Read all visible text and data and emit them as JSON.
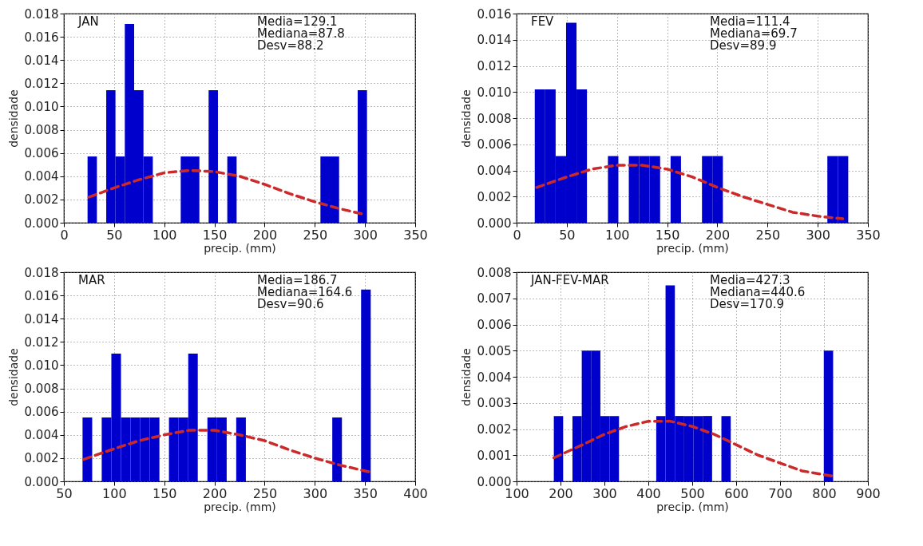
{
  "chart_data": [
    {
      "type": "histogram",
      "xlabel": "precip. (mm)",
      "ylabel": "densidade",
      "annotations": [
        "JAN",
        "Media=129.1",
        "Mediana=87.8",
        "Desv=88.2"
      ],
      "color": "#0000cc",
      "bins": [
        23.6,
        32.9,
        42.2,
        51.4,
        60.7,
        70.0,
        79.3,
        88.6,
        97.8,
        107.1,
        116.4,
        125.7,
        135.0,
        144.2,
        153.5,
        162.8,
        172.1,
        181.4,
        190.6,
        199.9,
        209.2,
        218.5,
        227.8,
        237.0,
        246.3,
        255.6,
        264.9,
        274.2,
        283.4,
        292.7,
        302.0
      ],
      "values": [
        0.0057,
        0,
        0.0114,
        0.0057,
        0.0171,
        0.0114,
        0.0057,
        0,
        0,
        0,
        0.0057,
        0.0057,
        0,
        0.0114,
        0,
        0.0057,
        0,
        0,
        0,
        0,
        0,
        0,
        0,
        0,
        0,
        0.0057,
        0.0057,
        0,
        0,
        0.0114
      ],
      "series": [
        {
          "type": "line",
          "color": "#cc2a2a",
          "line_style": "dashed",
          "x": [
            25,
            50,
            75,
            100,
            125,
            150,
            175,
            200,
            225,
            250,
            275,
            300
          ],
          "values": [
            0.0022,
            0.003,
            0.0037,
            0.0043,
            0.0045,
            0.0044,
            0.004,
            0.0033,
            0.0025,
            0.0018,
            0.0012,
            0.0007
          ]
        }
      ],
      "xlim": [
        0,
        350
      ],
      "xticks": [
        0,
        50,
        100,
        150,
        200,
        250,
        300,
        350
      ],
      "ylim": [
        0,
        0.018
      ],
      "yticks": [
        {
          "value": 0,
          "label": "0.000"
        },
        {
          "value": 0.002,
          "label": "0.002"
        },
        {
          "value": 0.004,
          "label": "0.004"
        },
        {
          "value": 0.006,
          "label": "0.006"
        },
        {
          "value": 0.008,
          "label": "0.008"
        },
        {
          "value": 0.01,
          "label": "0.010"
        },
        {
          "value": 0.012,
          "label": "0.012"
        },
        {
          "value": 0.014,
          "label": "0.014"
        },
        {
          "value": 0.016,
          "label": "0.016"
        },
        {
          "value": 0.018,
          "label": "0.018"
        }
      ],
      "grid": true
    },
    {
      "type": "histogram",
      "xlabel": "precip. (mm)",
      "ylabel": "densidade",
      "annotations": [
        "FEV",
        "Media=111.4",
        "Mediana=69.7",
        "Desv=89.9"
      ],
      "color": "#0000cc",
      "bins": [
        18.1,
        28.5,
        38.9,
        49.3,
        59.7,
        70.1,
        80.6,
        91.0,
        101.4,
        111.8,
        122.2,
        132.6,
        143.0,
        153.4,
        163.8,
        174.2,
        184.7,
        195.1,
        205.5,
        215.9,
        226.3,
        236.7,
        247.1,
        257.5,
        267.9,
        278.4,
        288.8,
        299.2,
        309.6,
        320.0,
        330.4
      ],
      "values": [
        0.0102,
        0.0102,
        0.0051,
        0.0153,
        0.0102,
        0,
        0,
        0.0051,
        0,
        0.0051,
        0.0051,
        0.0051,
        0,
        0.0051,
        0,
        0,
        0.0051,
        0.0051,
        0,
        0,
        0,
        0,
        0,
        0,
        0,
        0,
        0,
        0,
        0.0051,
        0.0051
      ],
      "series": [
        {
          "type": "line",
          "color": "#cc2a2a",
          "line_style": "dashed",
          "x": [
            20,
            50,
            75,
            100,
            125,
            150,
            175,
            200,
            225,
            250,
            275,
            300,
            325
          ],
          "values": [
            0.0027,
            0.0035,
            0.0041,
            0.0044,
            0.0044,
            0.0041,
            0.0035,
            0.0027,
            0.002,
            0.0014,
            0.0008,
            0.0005,
            0.0003
          ]
        }
      ],
      "xlim": [
        0,
        350
      ],
      "xticks": [
        0,
        50,
        100,
        150,
        200,
        250,
        300,
        350
      ],
      "ylim": [
        0,
        0.016
      ],
      "yticks": [
        {
          "value": 0,
          "label": "0.000"
        },
        {
          "value": 0.002,
          "label": "0.002"
        },
        {
          "value": 0.004,
          "label": "0.004"
        },
        {
          "value": 0.006,
          "label": "0.006"
        },
        {
          "value": 0.008,
          "label": "0.008"
        },
        {
          "value": 0.01,
          "label": "0.010"
        },
        {
          "value": 0.012,
          "label": "0.012"
        },
        {
          "value": 0.014,
          "label": "0.014"
        },
        {
          "value": 0.016,
          "label": "0.016"
        }
      ],
      "grid": true
    },
    {
      "type": "histogram",
      "xlabel": "precip. (mm)",
      "ylabel": "densidade",
      "annotations": [
        "MAR",
        "Media=186.7",
        "Mediana=164.6",
        "Desv=90.6"
      ],
      "color": "#0000cc",
      "bins": [
        68.6,
        78.2,
        87.7,
        97.3,
        106.9,
        116.5,
        126.0,
        135.6,
        145.2,
        154.7,
        164.3,
        173.9,
        183.4,
        193.0,
        202.6,
        212.2,
        221.7,
        231.3,
        240.9,
        250.4,
        260.0,
        269.6,
        279.1,
        288.7,
        298.3,
        307.9,
        317.4,
        327.0,
        336.6,
        346.1,
        355.7
      ],
      "values": [
        0.0055,
        0,
        0.0055,
        0.011,
        0.0055,
        0.0055,
        0.0055,
        0.0055,
        0,
        0.0055,
        0.0055,
        0.011,
        0,
        0.0055,
        0.0055,
        0,
        0.0055,
        0,
        0,
        0,
        0,
        0,
        0,
        0,
        0,
        0,
        0.0055,
        0,
        0,
        0.0165
      ],
      "series": [
        {
          "type": "line",
          "color": "#cc2a2a",
          "line_style": "dashed",
          "x": [
            70,
            100,
            125,
            150,
            175,
            200,
            225,
            250,
            275,
            300,
            325,
            355
          ],
          "values": [
            0.0019,
            0.0028,
            0.0035,
            0.004,
            0.0044,
            0.0044,
            0.004,
            0.0035,
            0.0027,
            0.002,
            0.0014,
            0.0008
          ]
        }
      ],
      "xlim": [
        50,
        400
      ],
      "xticks": [
        50,
        100,
        150,
        200,
        250,
        300,
        350,
        400
      ],
      "ylim": [
        0,
        0.018
      ],
      "yticks": [
        {
          "value": 0,
          "label": "0.000"
        },
        {
          "value": 0.002,
          "label": "0.002"
        },
        {
          "value": 0.004,
          "label": "0.004"
        },
        {
          "value": 0.006,
          "label": "0.006"
        },
        {
          "value": 0.008,
          "label": "0.008"
        },
        {
          "value": 0.01,
          "label": "0.010"
        },
        {
          "value": 0.012,
          "label": "0.012"
        },
        {
          "value": 0.014,
          "label": "0.014"
        },
        {
          "value": 0.016,
          "label": "0.016"
        },
        {
          "value": 0.018,
          "label": "0.018"
        }
      ],
      "grid": true
    },
    {
      "type": "histogram",
      "xlabel": "precip. (mm)",
      "ylabel": "densidade",
      "annotations": [
        "JAN-FEV-MAR",
        "Media=427.3",
        "Mediana=440.6",
        "Desv=170.9"
      ],
      "color": "#0000cc",
      "bins": [
        184.8,
        206.0,
        227.2,
        248.4,
        269.6,
        290.8,
        312.0,
        333.2,
        354.4,
        375.6,
        396.8,
        418.0,
        439.2,
        460.4,
        481.6,
        502.8,
        524.0,
        545.2,
        566.4,
        587.6,
        608.8,
        630.0,
        651.2,
        672.4,
        693.6,
        714.8,
        736.0,
        757.2,
        778.4,
        799.6,
        820.8
      ],
      "values": [
        0.0025,
        0,
        0.0025,
        0.005,
        0.005,
        0.0025,
        0.0025,
        0,
        0,
        0,
        0,
        0.0025,
        0.0075,
        0.0025,
        0.0025,
        0.0025,
        0.0025,
        0,
        0.0025,
        0,
        0,
        0,
        0,
        0,
        0,
        0,
        0,
        0,
        0,
        0.005
      ],
      "series": [
        {
          "type": "line",
          "color": "#cc2a2a",
          "line_style": "dashed",
          "x": [
            185,
            250,
            300,
            350,
            400,
            450,
            500,
            550,
            600,
            650,
            700,
            750,
            820
          ],
          "values": [
            0.0009,
            0.0014,
            0.0018,
            0.0021,
            0.0023,
            0.0023,
            0.0021,
            0.0018,
            0.0014,
            0.001,
            0.0007,
            0.0004,
            0.0002
          ]
        }
      ],
      "xlim": [
        100,
        900
      ],
      "xticks": [
        100,
        200,
        300,
        400,
        500,
        600,
        700,
        800,
        900
      ],
      "ylim": [
        0,
        0.008
      ],
      "yticks": [
        {
          "value": 0,
          "label": "0.000"
        },
        {
          "value": 0.001,
          "label": "0.001"
        },
        {
          "value": 0.002,
          "label": "0.002"
        },
        {
          "value": 0.003,
          "label": "0.003"
        },
        {
          "value": 0.004,
          "label": "0.004"
        },
        {
          "value": 0.005,
          "label": "0.005"
        },
        {
          "value": 0.006,
          "label": "0.006"
        },
        {
          "value": 0.007,
          "label": "0.007"
        },
        {
          "value": 0.008,
          "label": "0.008"
        }
      ],
      "grid": true
    }
  ]
}
